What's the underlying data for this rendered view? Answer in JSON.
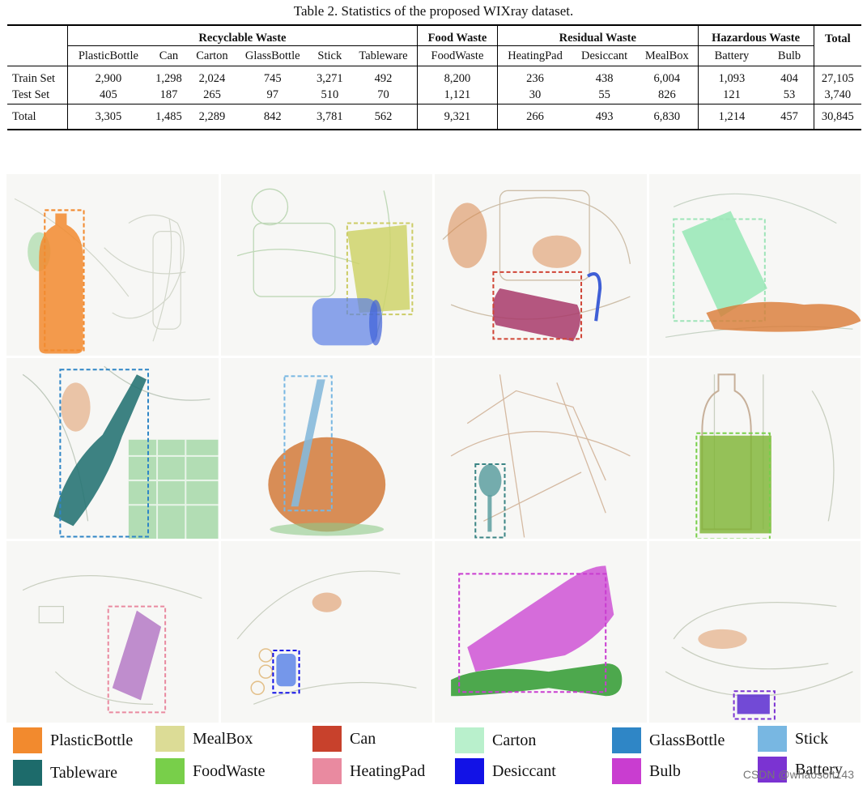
{
  "caption": "Table 2. Statistics of the proposed WIXray dataset.",
  "table": {
    "groups": [
      {
        "label": "Recyclable Waste",
        "span": 6
      },
      {
        "label": "Food Waste",
        "span": 1
      },
      {
        "label": "Residual Waste",
        "span": 3
      },
      {
        "label": "Hazardous Waste",
        "span": 2
      }
    ],
    "total_header": "Total",
    "columns": [
      "PlasticBottle",
      "Can",
      "Carton",
      "GlassBottle",
      "Stick",
      "Tableware",
      "FoodWaste",
      "HeatingPad",
      "Desiccant",
      "MealBox",
      "Battery",
      "Bulb"
    ],
    "rows": [
      {
        "label": "Train Set",
        "values": [
          "2,900",
          "1,298",
          "2,024",
          "745",
          "3,271",
          "492",
          "8,200",
          "236",
          "438",
          "6,004",
          "1,093",
          "404"
        ],
        "total": "27,105"
      },
      {
        "label": "Test Set",
        "values": [
          "405",
          "187",
          "265",
          "97",
          "510",
          "70",
          "1,121",
          "30",
          "55",
          "826",
          "121",
          "53"
        ],
        "total": "3,740"
      }
    ],
    "total_row": {
      "label": "Total",
      "values": [
        "3,305",
        "1,485",
        "2,289",
        "842",
        "3,781",
        "562",
        "9,321",
        "266",
        "493",
        "6,830",
        "1,214",
        "457"
      ],
      "total": "30,845"
    }
  },
  "legend": [
    {
      "label": "PlasticBottle",
      "color": "#f28a2e"
    },
    {
      "label": "MealBox",
      "color": "#dcdc96"
    },
    {
      "label": "Can",
      "color": "#c8412c"
    },
    {
      "label": "Carton",
      "color": "#b9f0cc"
    },
    {
      "label": "GlassBottle",
      "color": "#2f86c6"
    },
    {
      "label": "Stick",
      "color": "#78b7e2"
    },
    {
      "label": "Tableware",
      "color": "#1d6b6b"
    },
    {
      "label": "FoodWaste",
      "color": "#78cf4a"
    },
    {
      "label": "HeatingPad",
      "color": "#e98aa0"
    },
    {
      "label": "Desiccant",
      "color": "#1212e6"
    },
    {
      "label": "Bulb",
      "color": "#c93dd0"
    },
    {
      "label": "Battery",
      "color": "#7b33d2"
    }
  ],
  "watermark": "CSDN @whaosoft143"
}
